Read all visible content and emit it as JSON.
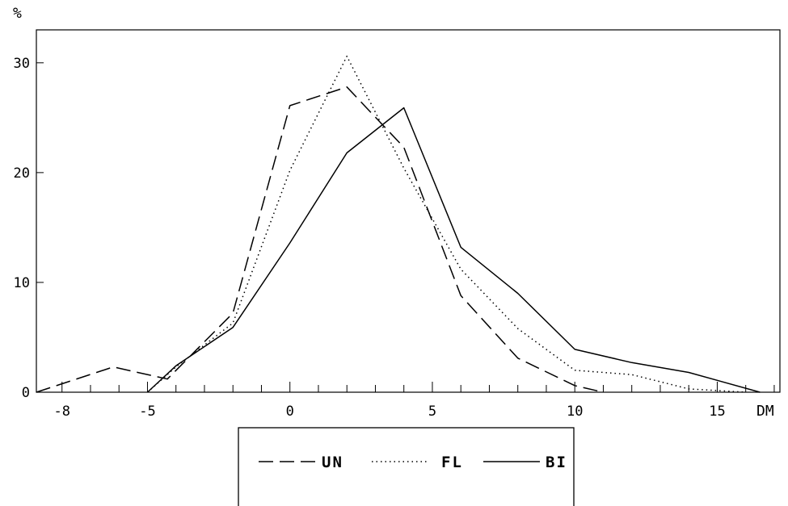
{
  "chart_data": {
    "type": "line",
    "ylabel": "%",
    "xlabel": "DM",
    "xlim": [
      -8.9,
      17.2
    ],
    "ylim": [
      0,
      33
    ],
    "x_ticks": [
      -8,
      -5,
      0,
      5,
      10,
      15
    ],
    "x_tick_labels": [
      "-8",
      "-5",
      "0",
      "5",
      "10",
      "15"
    ],
    "y_ticks": [
      0,
      10,
      20,
      30
    ],
    "y_tick_labels": [
      "0",
      "10",
      "20",
      "30"
    ],
    "grid": false,
    "legend_position": "bottom",
    "series": [
      {
        "name": "UN",
        "style": "dashed",
        "x": [
          -8.9,
          -6.2,
          -4.3,
          -2,
          0,
          2,
          4,
          6,
          8,
          10,
          11
        ],
        "y": [
          0,
          2.3,
          1.2,
          7.2,
          26.1,
          27.8,
          22.3,
          8.8,
          3.1,
          0.6,
          0
        ]
      },
      {
        "name": "FL",
        "style": "dotted",
        "x": [
          -5,
          -4,
          -2,
          0,
          2,
          4,
          6,
          8,
          10,
          12,
          14,
          16
        ],
        "y": [
          0,
          2.3,
          6.3,
          20.2,
          30.6,
          20.4,
          11.2,
          5.8,
          2,
          1.6,
          0.3,
          0
        ]
      },
      {
        "name": "BI",
        "style": "solid",
        "x": [
          -5,
          -4,
          -2,
          0,
          2,
          4,
          6,
          8,
          10,
          12,
          14,
          16.5
        ],
        "y": [
          0,
          2.4,
          5.9,
          13.6,
          21.8,
          25.9,
          13.2,
          9,
          3.9,
          2.7,
          1.8,
          0
        ]
      }
    ]
  }
}
